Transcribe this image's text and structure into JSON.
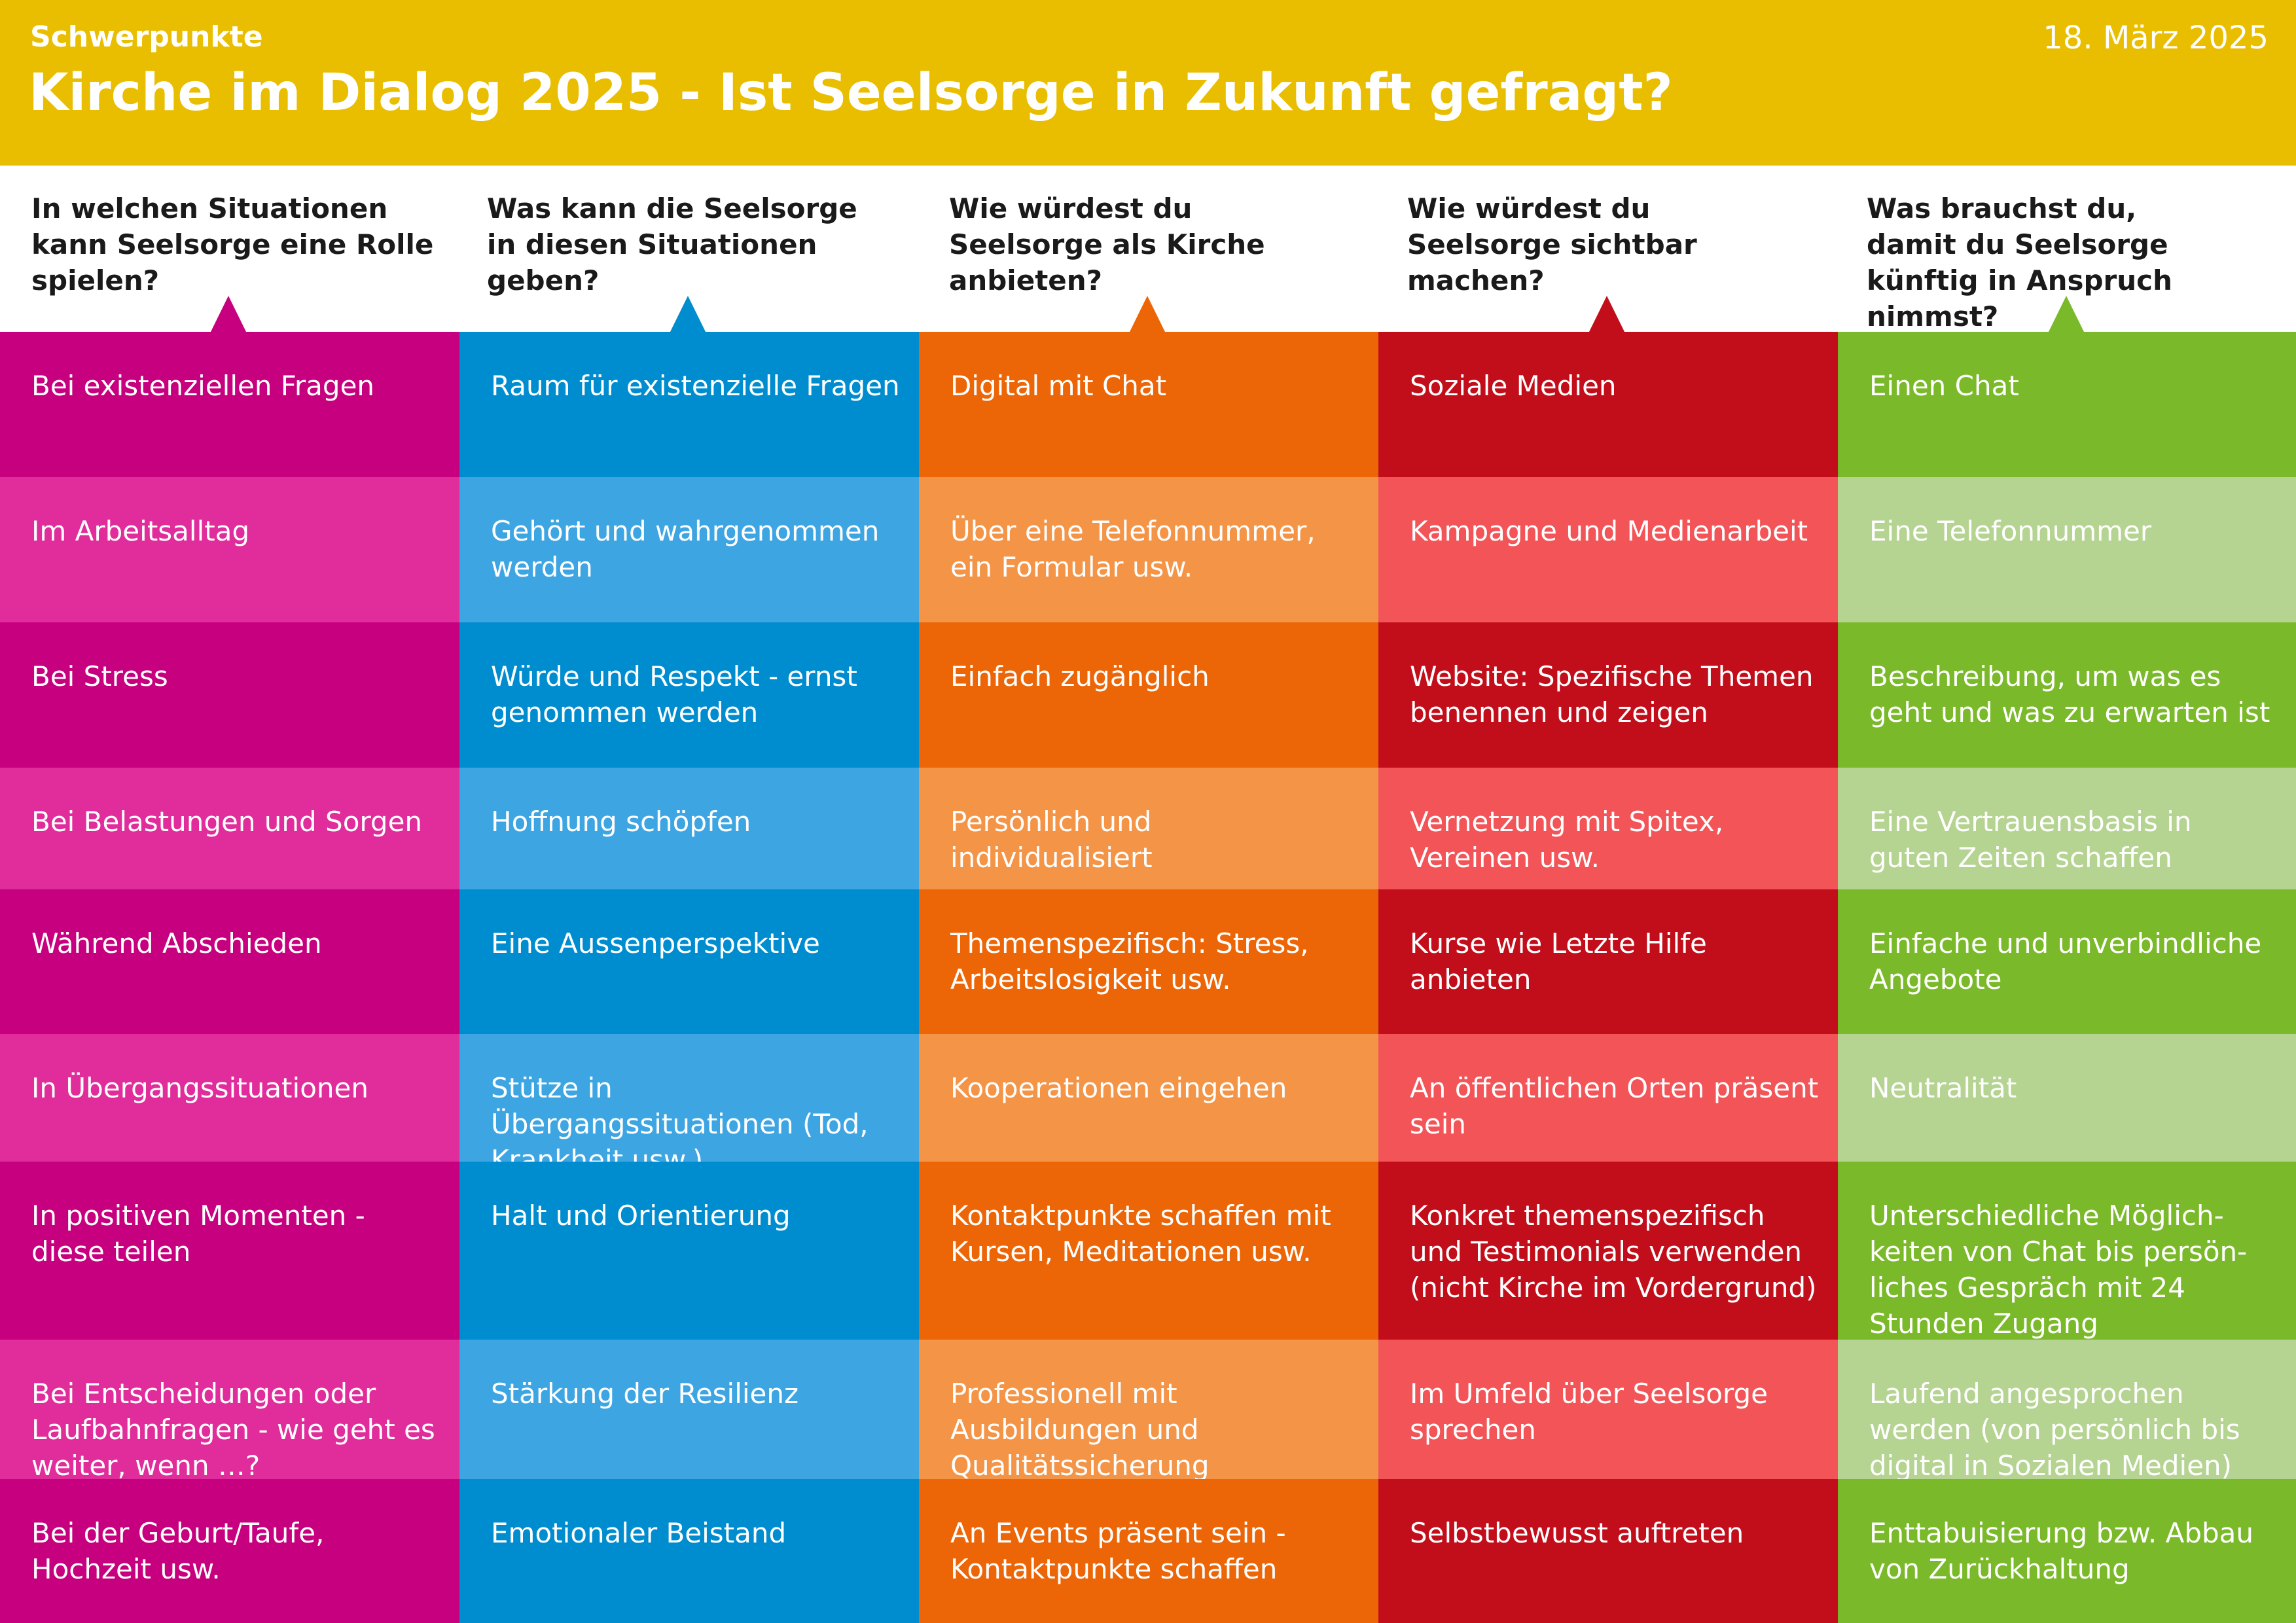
{
  "header": {
    "kicker": "Schwerpunkte",
    "title": "Kirche im Dialog 2025 - Ist Seelsorge in Zukunft gefragt?",
    "date": "18. März 2025",
    "color": "#E9BE00"
  },
  "columns": [
    {
      "question": "In welchen Situationen kann Seelsorge eine Rolle spielen?",
      "color_dark": "#C6007E",
      "color_light": "#E12C9B",
      "items": [
        "Bei existenziellen Fragen",
        "Im Arbeitsalltag",
        "Bei Stress",
        "Bei Belastungen und Sorgen",
        "Während Abschieden",
        "In Übergangssituationen",
        "In positiven Momenten - diese teilen",
        "Bei Entscheidungen oder Laufbahnfragen - wie geht es weiter, wenn …?",
        "Bei der Geburt/Taufe, Hochzeit usw."
      ]
    },
    {
      "question": "Was kann die Seelsorge in diesen Situationen geben?",
      "color_dark": "#008DCF",
      "color_light": "#3EA5E3",
      "items": [
        "Raum für existenzielle Fragen",
        "Gehört und wahrgenommen werden",
        "Würde und Respekt - ernst genommen werden",
        "Hoffnung schöpfen",
        "Eine Aussenperspektive",
        "Stütze in Übergangssituationen (Tod, Krankheit usw.)",
        "Halt und Orientierung",
        "Stärkung der Resilienz",
        "Emotionaler Beistand"
      ]
    },
    {
      "question": "Wie würdest du Seelsorge als Kirche anbieten?",
      "color_dark": "#EC6608",
      "color_light": "#F39447",
      "items": [
        "Digital mit Chat",
        "Über eine Telefonnummer, ein Formular usw.",
        "Einfach zugänglich",
        "Persönlich und individualisiert",
        "Themenspezifisch: Stress, Arbeitslosigkeit usw.",
        "Kooperationen eingehen",
        "Kontaktpunkte schaffen mit Kursen, Meditationen usw.",
        "Professionell mit Ausbildungen und Qualitätssicherung",
        "An Events präsent sein - Kontaktpunkte schaffen"
      ]
    },
    {
      "question": "Wie würdest du Seelsorge sichtbar machen?",
      "color_dark": "#C20E1A",
      "color_light": "#F25457",
      "items": [
        "Soziale Medien",
        "Kampagne und Medienarbeit",
        "Website: Spezifische Themen benennen und zeigen",
        "Vernetzung mit Spitex, Vereinen usw.",
        "Kurse wie Letzte Hilfe anbieten",
        "An öffentlichen Orten präsent sein",
        "Konkret themenspezifisch und Testimonials verwenden (nicht Kirche im Vordergrund)",
        "Im Umfeld über Seelsorge sprechen",
        "Selbstbewusst auftreten"
      ]
    },
    {
      "question": "Was brauchst du, damit du Seelsorge künftig in Anspruch nimmst?",
      "color_dark": "#7AB929",
      "color_light": "#B5D391",
      "items": [
        "Einen Chat",
        "Eine Telefonnummer",
        "Beschreibung, um was es geht und was zu erwarten ist",
        "Eine Vertrauensbasis in guten Zeiten schaffen",
        "Einfache und unverbindliche Angebote",
        "Neutralität",
        "Unterschiedliche Möglich-keiten von Chat bis persön-liches Gespräch mit 24 Stunden Zugang",
        "Laufend angesprochen werden (von persönlich bis digital in Sozialen Medien)",
        "Enttabuisierung bzw. Abbau von Zurückhaltung"
      ]
    }
  ]
}
